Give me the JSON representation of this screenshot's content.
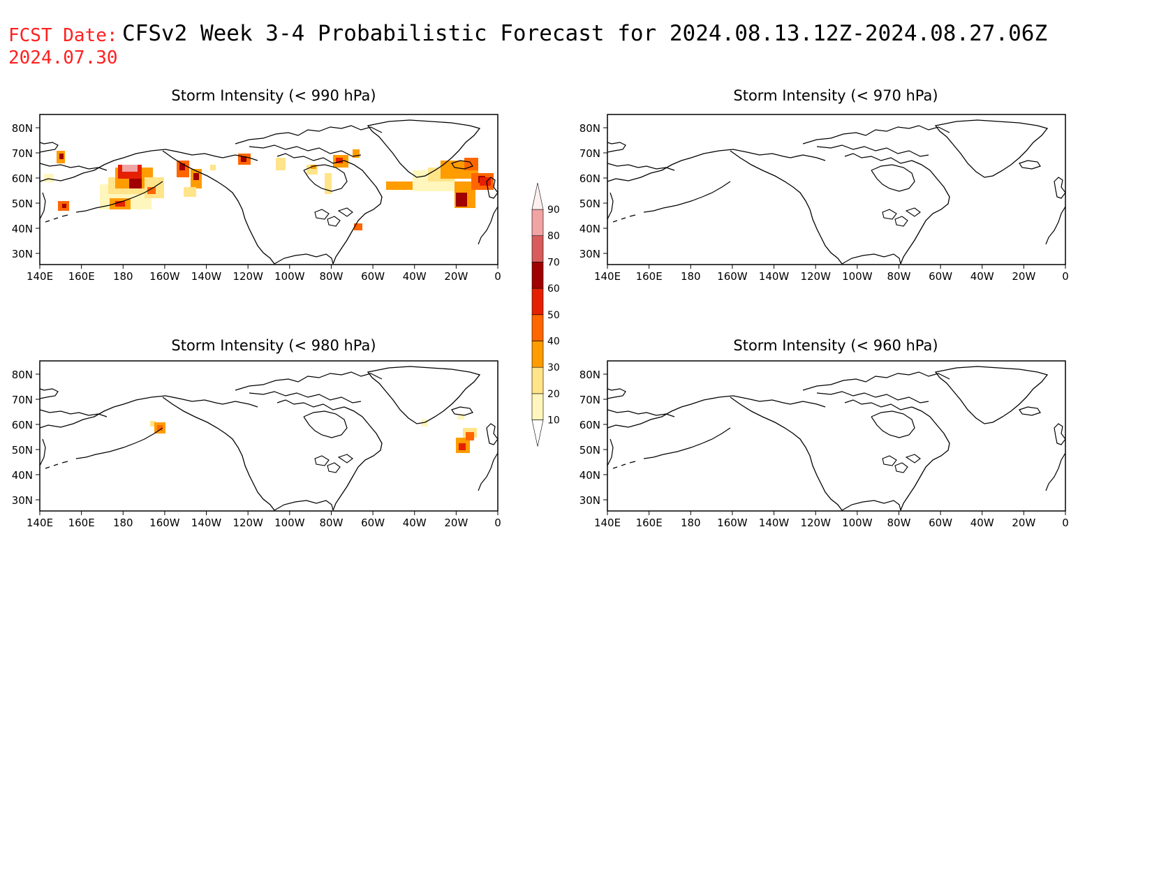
{
  "header": {
    "fcst_label": "FCST Date:",
    "fcst_date": "2024.07.30",
    "title": "CFSv2 Week 3-4 Probabilistic Forecast for 2024.08.13.12Z-2024.08.27.06Z"
  },
  "colors": {
    "title_red": "#ff2020",
    "coast": "#000000",
    "bins": [
      "#fff6bd",
      "#ffe48a",
      "#ff9c00",
      "#ff6600",
      "#e52000",
      "#a00000",
      "#d85c5c",
      "#f0a4a4",
      "#fff0f0"
    ]
  },
  "panels": [
    {
      "id": "p990",
      "title": "Storm Intensity (< 990 hPa)",
      "lat_ticks": [
        "80N",
        "70N",
        "60N",
        "50N",
        "40N",
        "30N"
      ],
      "lon_ticks": [
        "140E",
        "160E",
        "180",
        "160W",
        "140W",
        "120W",
        "100W",
        "80W",
        "60W",
        "40W",
        "20W",
        "0"
      ]
    },
    {
      "id": "p970",
      "title": "Storm Intensity (< 970 hPa)",
      "lat_ticks": [
        "80N",
        "70N",
        "60N",
        "50N",
        "40N",
        "30N"
      ],
      "lon_ticks": [
        "140E",
        "160E",
        "180",
        "160W",
        "140W",
        "120W",
        "100W",
        "80W",
        "60W",
        "40W",
        "20W",
        "0"
      ]
    },
    {
      "id": "p980",
      "title": "Storm Intensity (< 980 hPa)",
      "lat_ticks": [
        "80N",
        "70N",
        "60N",
        "50N",
        "40N",
        "30N"
      ],
      "lon_ticks": [
        "140E",
        "160E",
        "180",
        "160W",
        "140W",
        "120W",
        "100W",
        "80W",
        "60W",
        "40W",
        "20W",
        "0"
      ]
    },
    {
      "id": "p960",
      "title": "Storm Intensity (< 960 hPa)",
      "lat_ticks": [
        "80N",
        "70N",
        "60N",
        "50N",
        "40N",
        "30N"
      ],
      "lon_ticks": [
        "140E",
        "160E",
        "180",
        "160W",
        "140W",
        "120W",
        "100W",
        "80W",
        "60W",
        "40W",
        "20W",
        "0"
      ]
    }
  ],
  "colorbar": {
    "levels": [
      "10",
      "20",
      "30",
      "40",
      "50",
      "60",
      "70",
      "80",
      "90"
    ]
  }
}
